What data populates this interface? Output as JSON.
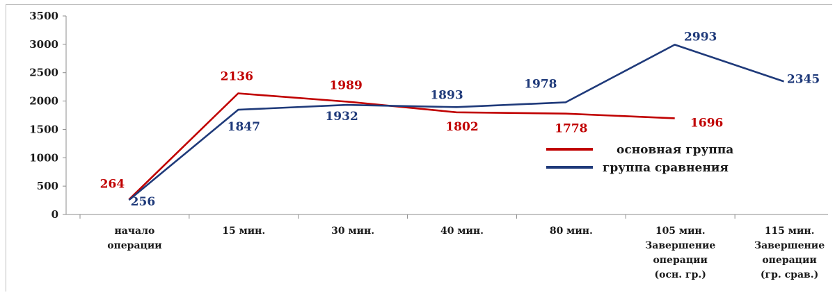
{
  "chart_data": {
    "type": "line",
    "categories": [
      [
        "начало",
        "операции"
      ],
      [
        "15 мин."
      ],
      [
        "30 мин."
      ],
      [
        "40 мин."
      ],
      [
        "80 мин."
      ],
      [
        "105 мин.",
        "Завершение",
        "операции",
        "(осн. гр.)"
      ],
      [
        "115 мин.",
        "Завершение",
        "операции",
        "(гр. срав.)"
      ]
    ],
    "ylim": [
      0,
      3500
    ],
    "yticks": [
      0,
      500,
      1000,
      1500,
      2000,
      2500,
      3000,
      3500
    ],
    "grid": false,
    "legend_position": "right",
    "series": [
      {
        "name": "основная группа",
        "color": "#c00000",
        "values": [
          264,
          2136,
          1989,
          1802,
          1778,
          1696,
          null
        ],
        "labels": [
          "264",
          "2136",
          "1989",
          "1802",
          "1778",
          "1696",
          ""
        ]
      },
      {
        "name": "группа сравнения",
        "color": "#1f3a7a",
        "values": [
          256,
          1847,
          1932,
          1893,
          1978,
          2993,
          2345
        ],
        "labels": [
          "256",
          "1847",
          "1932",
          "1893",
          "1978",
          "2993",
          "2345"
        ]
      }
    ]
  }
}
